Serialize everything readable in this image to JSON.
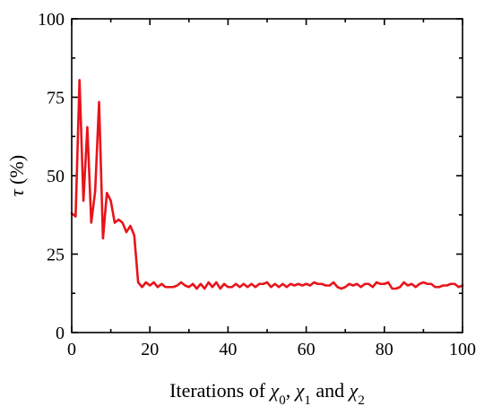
{
  "chart_data": {
    "type": "line",
    "xlabel": "Iterations of χ0, χ1 and χ2",
    "xlabel_parts": [
      {
        "text": "Iterations of ",
        "italic": false,
        "sub": false
      },
      {
        "text": "χ",
        "italic": true,
        "sub": false
      },
      {
        "text": "0",
        "italic": false,
        "sub": true
      },
      {
        "text": ", ",
        "italic": false,
        "sub": false
      },
      {
        "text": "χ",
        "italic": true,
        "sub": false
      },
      {
        "text": "1",
        "italic": false,
        "sub": true
      },
      {
        "text": " and ",
        "italic": false,
        "sub": false
      },
      {
        "text": "χ",
        "italic": true,
        "sub": false
      },
      {
        "text": "2",
        "italic": false,
        "sub": true
      }
    ],
    "ylabel": "τ (%)",
    "ylabel_symbol": "τ",
    "ylabel_unit": " (%)",
    "xlim": [
      0,
      100
    ],
    "ylim": [
      0,
      100
    ],
    "xticks": [
      0,
      20,
      40,
      60,
      80,
      100
    ],
    "yticks": [
      0,
      25,
      50,
      75,
      100
    ],
    "grid": false,
    "series": [
      {
        "color": "#e8141b",
        "x": [
          0,
          1,
          2,
          3,
          4,
          5,
          6,
          7,
          8,
          9,
          10,
          11,
          12,
          13,
          14,
          15,
          16,
          17,
          18,
          19,
          20,
          21,
          22,
          23,
          24,
          25,
          26,
          27,
          28,
          29,
          30,
          31,
          32,
          33,
          34,
          35,
          36,
          37,
          38,
          39,
          40,
          41,
          42,
          43,
          44,
          45,
          46,
          47,
          48,
          49,
          50,
          51,
          52,
          53,
          54,
          55,
          56,
          57,
          58,
          59,
          60,
          61,
          62,
          63,
          64,
          65,
          66,
          67,
          68,
          69,
          70,
          71,
          72,
          73,
          74,
          75,
          76,
          77,
          78,
          79,
          80,
          81,
          82,
          83,
          84,
          85,
          86,
          87,
          88,
          89,
          90,
          91,
          92,
          93,
          94,
          95,
          96,
          97,
          98,
          99,
          100
        ],
        "y": [
          38,
          37,
          80.5,
          42,
          65.5,
          35,
          45,
          73.5,
          30,
          44.5,
          42,
          35,
          36,
          35,
          32,
          34,
          31,
          16,
          14.5,
          16,
          15,
          16,
          14.5,
          15.5,
          14.5,
          14.5,
          14.5,
          15,
          16,
          15,
          14.5,
          15.5,
          14,
          15.5,
          14,
          16,
          14.5,
          16,
          14,
          15.5,
          14.5,
          14.5,
          15.5,
          14.5,
          15.5,
          14.5,
          15.5,
          14.5,
          15.5,
          15.5,
          16,
          14.5,
          15.5,
          14.5,
          15.5,
          14.5,
          15.5,
          15,
          15.5,
          15,
          15.5,
          15,
          16,
          15.5,
          15.5,
          15,
          15,
          16,
          14.5,
          14,
          14.5,
          15.5,
          15,
          15.5,
          14.5,
          15.5,
          15.5,
          14.5,
          16,
          15.5,
          15.5,
          16,
          14,
          14,
          14.5,
          16,
          15,
          15.5,
          14.5,
          15.5,
          16,
          15.5,
          15.5,
          14.5,
          14.5,
          15,
          15,
          15.5,
          15.5,
          14.5,
          15
        ]
      }
    ]
  }
}
